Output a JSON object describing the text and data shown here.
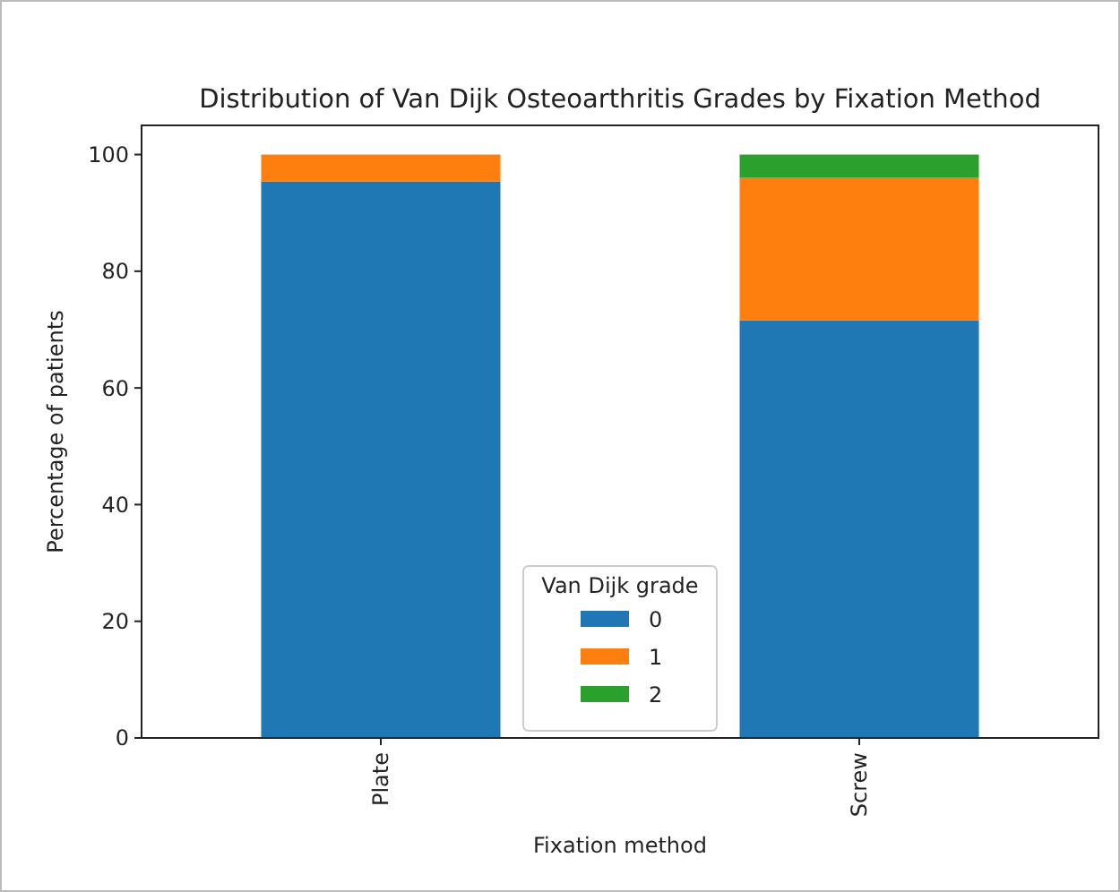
{
  "chart_data": {
    "type": "bar",
    "title": "Distribution of Van Dijk Osteoarthritis Grades by Fixation Method",
    "xlabel": "Fixation method",
    "ylabel": "Percentage of patients",
    "legend_title": "Van Dijk grade",
    "categories": [
      "Plate",
      "Screw"
    ],
    "stacked": true,
    "series": [
      {
        "name": "0",
        "color": "#1f77b4",
        "values": [
          95.4,
          71.6
        ]
      },
      {
        "name": "1",
        "color": "#ff7f0e",
        "values": [
          4.6,
          24.4
        ]
      },
      {
        "name": "2",
        "color": "#2ca02c",
        "values": [
          0,
          4.0
        ]
      }
    ],
    "ylim": [
      0,
      105
    ],
    "yticks": [
      0,
      20,
      40,
      60,
      80,
      100
    ],
    "legend": "bottom",
    "grid": false
  }
}
